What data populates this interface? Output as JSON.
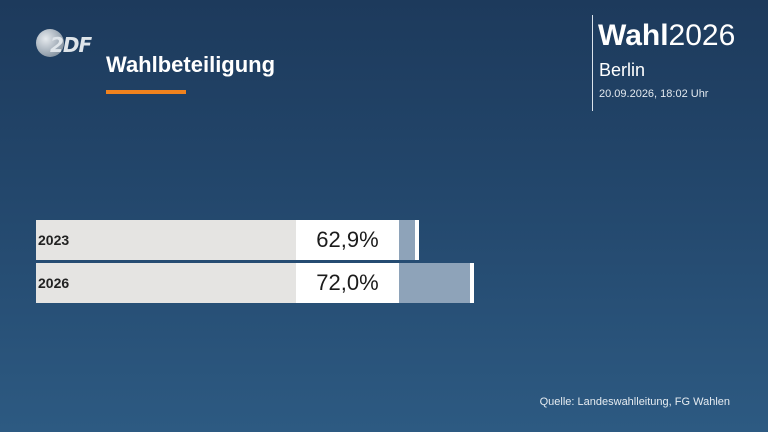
{
  "header": {
    "logo_text": "2DF",
    "title": "Wahlbeteiligung"
  },
  "brand": {
    "word": "Wahl",
    "year": "2026",
    "region": "Berlin",
    "timestamp": "20.09.2026, 18:02 Uhr"
  },
  "colors": {
    "accent": "#f0821e",
    "bar_fill": "#8ea3b9",
    "bar_background": "#e5e4e2"
  },
  "chart_data": {
    "type": "bar",
    "orientation": "horizontal",
    "categories": [
      "2023",
      "2026"
    ],
    "values": [
      62.9,
      72.0
    ],
    "value_labels": [
      "62,9%",
      "72,0%"
    ],
    "unit": "%",
    "xlim": [
      0,
      100
    ],
    "grid": false,
    "legend": "none"
  },
  "footer": {
    "source": "Quelle: Landeswahlleitung, FG Wahlen"
  }
}
